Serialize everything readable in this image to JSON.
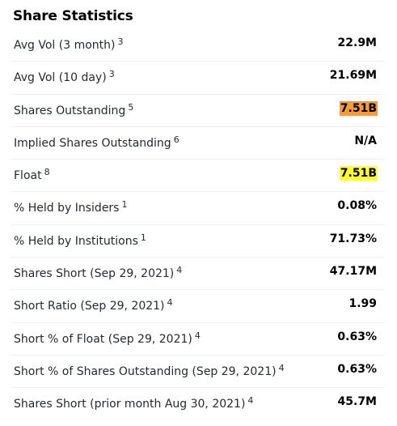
{
  "section": {
    "title": "Share Statistics"
  },
  "colors": {
    "highlight_orange": "#f79a3c",
    "highlight_yellow": "#ffff33",
    "row_divider": "#f0f3f5"
  },
  "rows": [
    {
      "label": "Avg Vol (3 month)",
      "note": "3",
      "value": "22.9M",
      "highlight": ""
    },
    {
      "label": "Avg Vol (10 day)",
      "note": "3",
      "value": "21.69M",
      "highlight": ""
    },
    {
      "label": "Shares Outstanding",
      "note": "5",
      "value": "7.51B",
      "highlight": "#f79a3c"
    },
    {
      "label": "Implied Shares Outstanding",
      "note": "6",
      "value": "N/A",
      "highlight": ""
    },
    {
      "label": "Float",
      "note": "8",
      "value": "7.51B",
      "highlight": "#ffff33"
    },
    {
      "label": "% Held by Insiders",
      "note": "1",
      "value": "0.08%",
      "highlight": ""
    },
    {
      "label": "% Held by Institutions",
      "note": "1",
      "value": "71.73%",
      "highlight": ""
    },
    {
      "label": "Shares Short (Sep 29, 2021)",
      "note": "4",
      "value": "47.17M",
      "highlight": ""
    },
    {
      "label": "Short Ratio (Sep 29, 2021)",
      "note": "4",
      "value": "1.99",
      "highlight": ""
    },
    {
      "label": "Short % of Float (Sep 29, 2021)",
      "note": "4",
      "value": "0.63%",
      "highlight": ""
    },
    {
      "label": "Short % of Shares Outstanding (Sep 29, 2021)",
      "note": "4",
      "value": "0.63%",
      "highlight": ""
    },
    {
      "label": "Shares Short (prior month Aug 30, 2021)",
      "note": "4",
      "value": "45.7M",
      "highlight": ""
    }
  ]
}
